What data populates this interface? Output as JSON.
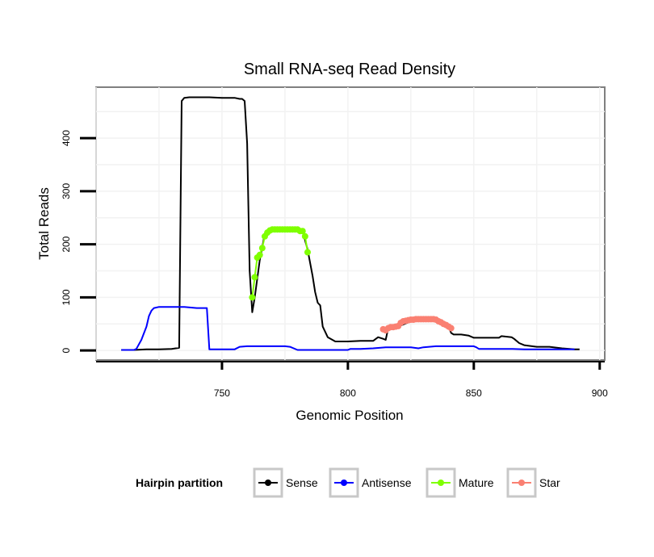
{
  "chart_data": {
    "type": "line",
    "title": "Small RNA-seq Read Density",
    "xlabel": "Genomic Position",
    "ylabel": "Total Reads",
    "xlim": [
      700,
      902
    ],
    "ylim": [
      -18,
      496
    ],
    "xticks": [
      750,
      800,
      850,
      900
    ],
    "yticks": [
      0,
      100,
      200,
      300,
      400
    ],
    "grid": true,
    "legend": {
      "title": "Hairpin partition",
      "position": "bottom"
    },
    "series": [
      {
        "name": "Sense",
        "color": "#000000",
        "marker": false,
        "x": [
          710,
          715,
          720,
          725,
          730,
          733,
          734,
          735,
          737,
          740,
          745,
          750,
          755,
          757,
          758,
          759,
          760,
          761,
          762,
          763,
          765,
          767,
          770,
          775,
          780,
          782,
          784,
          786,
          787,
          788,
          789,
          790,
          792,
          795,
          800,
          805,
          810,
          812,
          814,
          815,
          816,
          820,
          825,
          830,
          835,
          840,
          841,
          842,
          845,
          848,
          850,
          855,
          860,
          861,
          865,
          866,
          868,
          870,
          875,
          880,
          885,
          890,
          892
        ],
        "y": [
          1,
          1,
          2,
          2,
          3,
          5,
          470,
          476,
          477,
          477,
          477,
          476,
          476,
          474,
          474,
          470,
          390,
          150,
          72,
          100,
          170,
          220,
          228,
          228,
          228,
          225,
          190,
          140,
          110,
          90,
          85,
          45,
          25,
          17,
          17,
          18,
          18,
          25,
          22,
          20,
          42,
          45,
          55,
          60,
          60,
          45,
          33,
          30,
          30,
          28,
          24,
          24,
          24,
          27,
          25,
          22,
          14,
          10,
          7,
          7,
          4,
          2,
          2
        ]
      },
      {
        "name": "Antisense",
        "color": "#0000ff",
        "marker": false,
        "x": [
          710,
          715,
          716,
          718,
          720,
          721,
          722,
          723,
          725,
          730,
          735,
          740,
          744,
          745,
          746,
          750,
          755,
          757,
          760,
          765,
          770,
          775,
          777,
          780,
          800,
          801,
          802,
          805,
          810,
          815,
          825,
          828,
          830,
          835,
          850,
          851,
          852,
          855,
          860,
          865,
          870,
          885,
          890
        ],
        "y": [
          1,
          1,
          3,
          20,
          45,
          65,
          75,
          80,
          82,
          82,
          82,
          80,
          80,
          2,
          2,
          2,
          2,
          7,
          8,
          8,
          8,
          8,
          7,
          1,
          1,
          3,
          3,
          3,
          4,
          6,
          6,
          4,
          6,
          8,
          8,
          6,
          3,
          3,
          3,
          3,
          2,
          2,
          2
        ]
      },
      {
        "name": "Mature",
        "color": "#7fff00",
        "marker": true,
        "x": [
          762,
          763,
          764,
          765,
          766,
          767,
          768,
          769,
          770,
          771,
          772,
          773,
          774,
          775,
          776,
          777,
          778,
          779,
          780,
          781,
          782,
          783,
          784
        ],
        "y": [
          100,
          138,
          175,
          180,
          193,
          215,
          222,
          226,
          228,
          228,
          228,
          228,
          228,
          228,
          228,
          228,
          228,
          228,
          228,
          225,
          225,
          215,
          185
        ]
      },
      {
        "name": "Star",
        "color": "#fa8072",
        "marker": true,
        "x": [
          814,
          815,
          816,
          817,
          818,
          819,
          820,
          821,
          822,
          823,
          824,
          825,
          826,
          827,
          828,
          829,
          830,
          831,
          832,
          833,
          834,
          835,
          836,
          837,
          838,
          839,
          840,
          841
        ],
        "y": [
          40,
          38,
          42,
          44,
          44,
          45,
          46,
          52,
          55,
          56,
          57,
          58,
          58,
          59,
          59,
          59,
          59,
          59,
          59,
          59,
          59,
          58,
          55,
          53,
          50,
          48,
          45,
          42
        ]
      }
    ]
  }
}
